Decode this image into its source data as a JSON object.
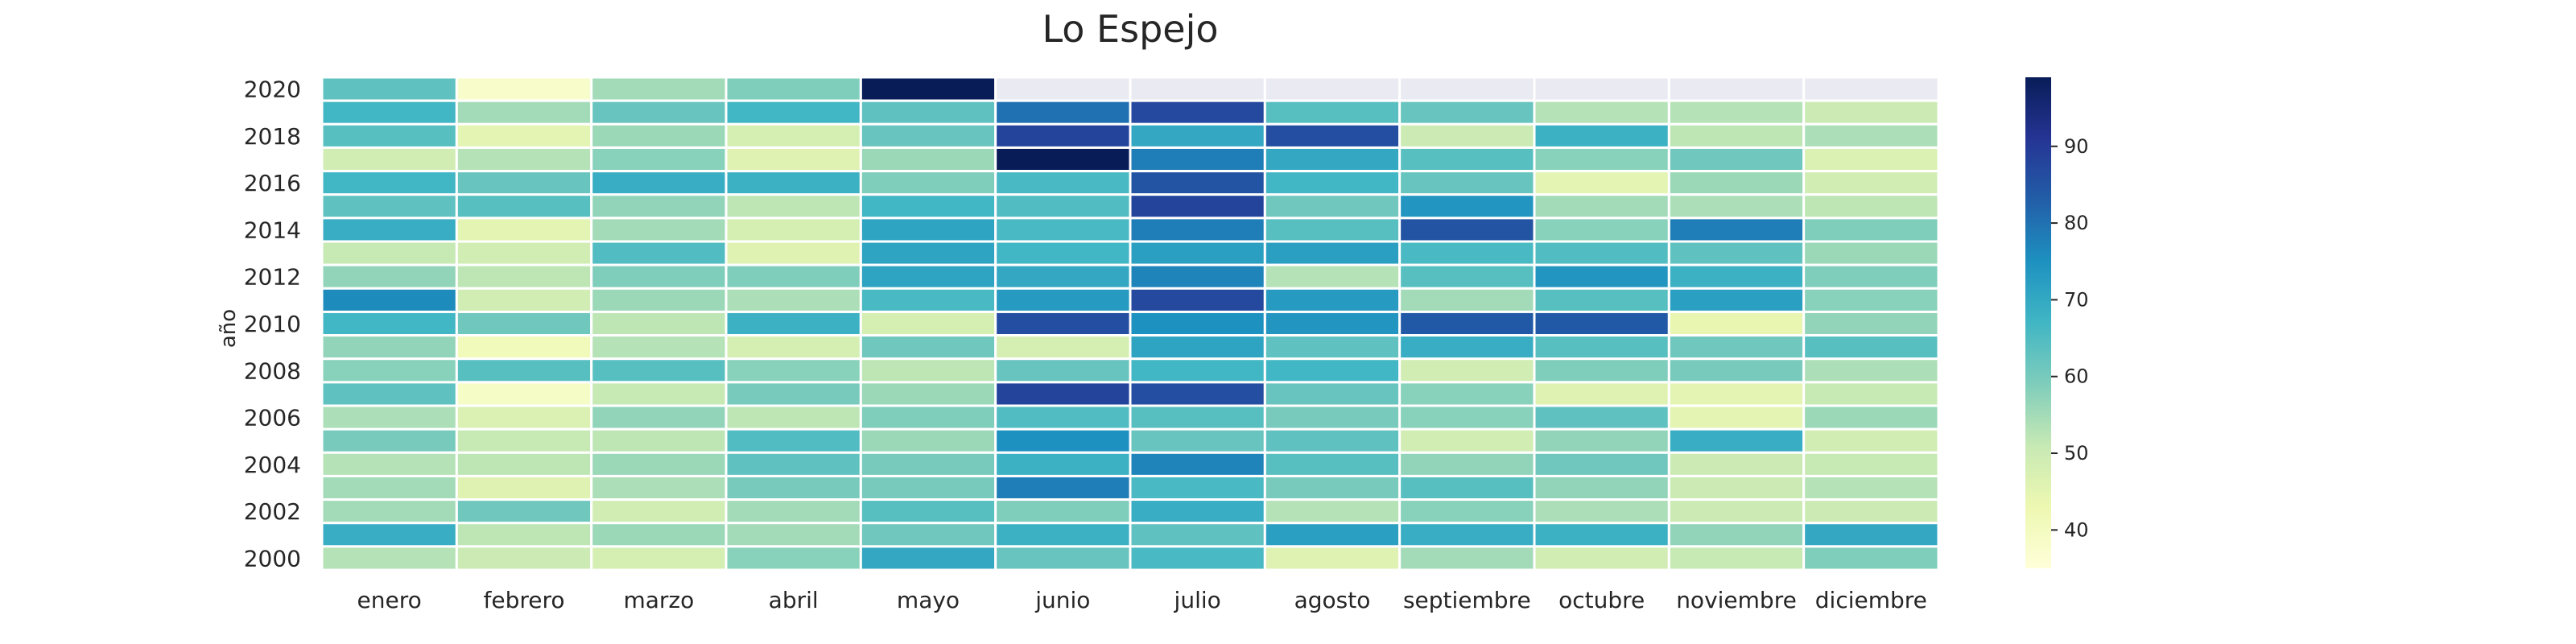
{
  "chart_data": {
    "type": "heatmap",
    "title": "Lo Espejo",
    "ylabel": "año",
    "xlabel": "",
    "x_categories": [
      "enero",
      "febrero",
      "marzo",
      "abril",
      "mayo",
      "junio",
      "julio",
      "agosto",
      "septiembre",
      "octubre",
      "noviembre",
      "diciembre"
    ],
    "y_categories": [
      "2020",
      "2019",
      "2018",
      "2017",
      "2016",
      "2015",
      "2014",
      "2013",
      "2012",
      "2011",
      "2010",
      "2009",
      "2008",
      "2007",
      "2006",
      "2005",
      "2004",
      "2003",
      "2002",
      "2001",
      "2000"
    ],
    "y_tick_labels": [
      "2020",
      "",
      "2018",
      "",
      "2016",
      "",
      "2014",
      "",
      "2012",
      "",
      "2010",
      "",
      "2008",
      "",
      "2006",
      "",
      "2004",
      "",
      "2002",
      "",
      "2000"
    ],
    "values": [
      [
        63,
        38,
        55,
        59,
        99,
        null,
        null,
        null,
        null,
        null,
        null,
        null
      ],
      [
        67,
        55,
        62,
        67,
        63,
        80,
        87,
        64,
        62,
        53,
        53,
        50
      ],
      [
        64,
        45,
        56,
        48,
        62,
        88,
        70,
        86,
        50,
        68,
        52,
        54
      ],
      [
        49,
        53,
        58,
        46,
        56,
        99,
        78,
        70,
        64,
        58,
        61,
        47
      ],
      [
        67,
        62,
        69,
        68,
        59,
        66,
        85,
        67,
        62,
        45,
        56,
        49
      ],
      [
        63,
        64,
        57,
        52,
        67,
        65,
        88,
        61,
        74,
        55,
        54,
        52
      ],
      [
        69,
        45,
        55,
        48,
        71,
        66,
        78,
        64,
        85,
        58,
        78,
        59
      ],
      [
        51,
        49,
        65,
        46,
        71,
        67,
        72,
        72,
        66,
        65,
        63,
        56
      ],
      [
        57,
        52,
        59,
        59,
        71,
        70,
        77,
        53,
        64,
        74,
        68,
        59
      ],
      [
        76,
        49,
        56,
        54,
        66,
        73,
        87,
        73,
        55,
        64,
        72,
        58
      ],
      [
        67,
        61,
        52,
        68,
        48,
        86,
        75,
        74,
        84,
        84,
        44,
        57
      ],
      [
        57,
        41,
        53,
        48,
        61,
        48,
        71,
        63,
        69,
        64,
        61,
        64
      ],
      [
        58,
        64,
        64,
        58,
        52,
        62,
        67,
        67,
        49,
        59,
        60,
        54
      ],
      [
        63,
        39,
        51,
        60,
        56,
        88,
        86,
        62,
        58,
        46,
        45,
        51
      ],
      [
        54,
        47,
        57,
        52,
        59,
        65,
        64,
        60,
        58,
        63,
        45,
        56
      ],
      [
        60,
        51,
        52,
        65,
        56,
        75,
        62,
        63,
        49,
        57,
        69,
        49
      ],
      [
        53,
        52,
        56,
        63,
        60,
        68,
        77,
        64,
        57,
        61,
        50,
        51
      ],
      [
        55,
        46,
        54,
        60,
        60,
        78,
        66,
        60,
        64,
        57,
        50,
        53
      ],
      [
        55,
        61,
        49,
        55,
        64,
        59,
        69,
        53,
        58,
        54,
        50,
        50
      ],
      [
        69,
        52,
        56,
        55,
        61,
        68,
        63,
        72,
        69,
        68,
        57,
        70
      ],
      [
        53,
        50,
        48,
        58,
        70,
        62,
        66,
        46,
        55,
        49,
        51,
        59
      ]
    ],
    "missing_color": "#eaeaf2",
    "colormap": "YlGnBu",
    "colormap_stops": [
      "#ffffd9",
      "#edf8b1",
      "#c7e9b4",
      "#7fcdbb",
      "#41b6c4",
      "#1d91c0",
      "#225ea8",
      "#253494",
      "#081d58"
    ],
    "color_range": [
      35,
      99
    ],
    "colorbar_ticks": [
      40,
      50,
      60,
      70,
      80,
      90
    ],
    "grid": false,
    "legend": "colorbar-right"
  }
}
